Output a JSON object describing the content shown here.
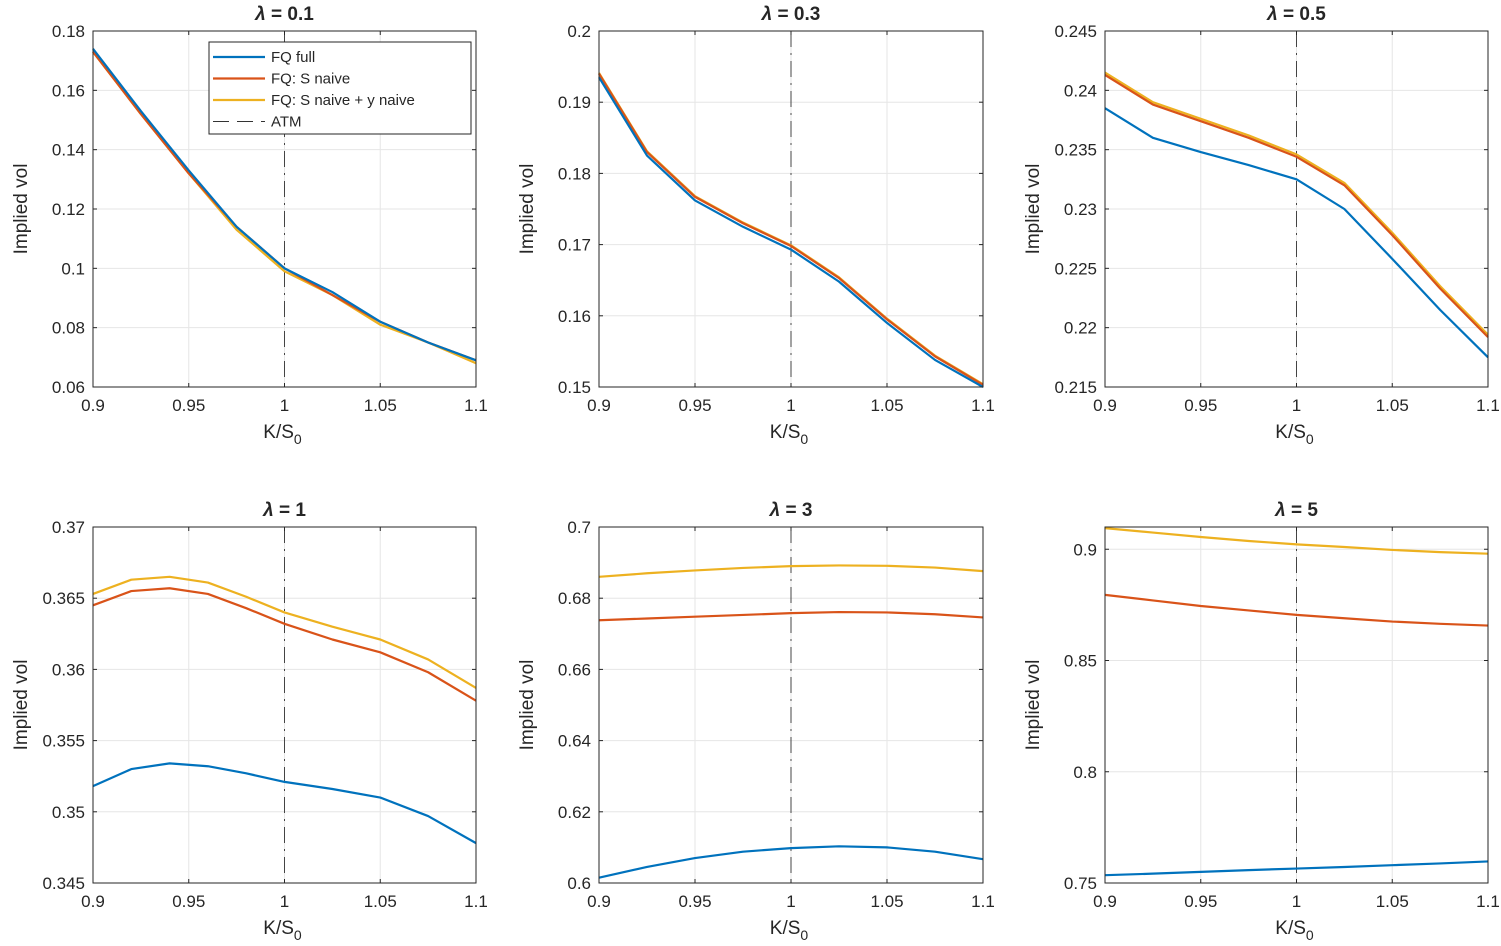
{
  "legend": {
    "entries": [
      {
        "label": "FQ full",
        "color": "#0072BD",
        "dash": "solid"
      },
      {
        "label": "FQ: S naive",
        "color": "#D95319",
        "dash": "solid"
      },
      {
        "label": "FQ: S naive + y naive",
        "color": "#EDB120",
        "dash": "solid"
      },
      {
        "label": "ATM",
        "color": "#333333",
        "dash": "dashed"
      }
    ]
  },
  "chart_data": [
    {
      "type": "line",
      "title_symbol": "λ",
      "title_rest": " = 0.1",
      "xlabel": "K/S",
      "xlabel_sub": "0",
      "ylabel": "Implied vol",
      "xlim": [
        0.9,
        1.1
      ],
      "ylim": [
        0.06,
        0.18
      ],
      "xticks": [
        "0.9",
        "0.95",
        "1",
        "1.05",
        "1.1"
      ],
      "yticks": [
        "0.06",
        "0.08",
        "0.1",
        "0.12",
        "0.14",
        "0.16",
        "0.18"
      ],
      "grid": true,
      "legend_position": "top-right",
      "atm_x": 1.0,
      "x": [
        0.9,
        0.925,
        0.95,
        0.975,
        1.0,
        1.025,
        1.05,
        1.075,
        1.1
      ],
      "series": [
        {
          "name": "FQ full",
          "values": [
            0.174,
            0.153,
            0.133,
            0.114,
            0.1,
            0.092,
            0.082,
            0.075,
            0.069
          ]
        },
        {
          "name": "FQ: S naive",
          "values": [
            0.173,
            0.152,
            0.132,
            0.114,
            0.1,
            0.091,
            0.082,
            0.075,
            0.069
          ]
        },
        {
          "name": "FQ: S naive + y naive",
          "values": [
            0.173,
            0.152,
            0.132,
            0.113,
            0.099,
            0.091,
            0.081,
            0.075,
            0.068
          ]
        }
      ]
    },
    {
      "type": "line",
      "title_symbol": "λ",
      "title_rest": " = 0.3",
      "xlabel": "K/S",
      "xlabel_sub": "0",
      "ylabel": "Implied vol",
      "xlim": [
        0.9,
        1.1
      ],
      "ylim": [
        0.15,
        0.2
      ],
      "xticks": [
        "0.9",
        "0.95",
        "1",
        "1.05",
        "1.1"
      ],
      "yticks": [
        "0.15",
        "0.16",
        "0.17",
        "0.18",
        "0.19",
        "0.2"
      ],
      "grid": true,
      "atm_x": 1.0,
      "x": [
        0.9,
        0.925,
        0.95,
        0.975,
        1.0,
        1.025,
        1.05,
        1.075,
        1.1
      ],
      "series": [
        {
          "name": "FQ full",
          "values": [
            0.1935,
            0.1825,
            0.1762,
            0.1725,
            0.1693,
            0.1648,
            0.159,
            0.1538,
            0.15
          ]
        },
        {
          "name": "FQ: S naive",
          "values": [
            0.194,
            0.183,
            0.1767,
            0.173,
            0.1698,
            0.1653,
            0.1595,
            0.1543,
            0.1503
          ]
        },
        {
          "name": "FQ: S naive + y naive",
          "values": [
            0.1941,
            0.1831,
            0.1768,
            0.1731,
            0.1699,
            0.1654,
            0.1596,
            0.1544,
            0.1504
          ]
        }
      ]
    },
    {
      "type": "line",
      "title_symbol": "λ",
      "title_rest": " = 0.5",
      "xlabel": "K/S",
      "xlabel_sub": "0",
      "ylabel": "Implied vol",
      "xlim": [
        0.9,
        1.1
      ],
      "ylim": [
        0.215,
        0.245
      ],
      "xticks": [
        "0.9",
        "0.95",
        "1",
        "1.05",
        "1.1"
      ],
      "yticks": [
        "0.215",
        "0.22",
        "0.225",
        "0.23",
        "0.235",
        "0.24",
        "0.245"
      ],
      "grid": true,
      "atm_x": 1.0,
      "x": [
        0.9,
        0.925,
        0.95,
        0.975,
        1.0,
        1.025,
        1.05,
        1.075,
        1.1
      ],
      "series": [
        {
          "name": "FQ full",
          "values": [
            0.2385,
            0.236,
            0.2348,
            0.2337,
            0.2325,
            0.23,
            0.2258,
            0.2215,
            0.2175
          ]
        },
        {
          "name": "FQ: S naive",
          "values": [
            0.2413,
            0.2388,
            0.2374,
            0.236,
            0.2344,
            0.232,
            0.2278,
            0.2233,
            0.2192
          ]
        },
        {
          "name": "FQ: S naive + y naive",
          "values": [
            0.2415,
            0.239,
            0.2376,
            0.2362,
            0.2346,
            0.2322,
            0.228,
            0.2235,
            0.2194
          ]
        }
      ]
    },
    {
      "type": "line",
      "title_symbol": "λ",
      "title_rest": " = 1",
      "xlabel": "K/S",
      "xlabel_sub": "0",
      "ylabel": "Implied vol",
      "xlim": [
        0.9,
        1.1
      ],
      "ylim": [
        0.345,
        0.37
      ],
      "xticks": [
        "0.9",
        "0.95",
        "1",
        "1.05",
        "1.1"
      ],
      "yticks": [
        "0.345",
        "0.35",
        "0.355",
        "0.36",
        "0.365",
        "0.37"
      ],
      "grid": true,
      "atm_x": 1.0,
      "x": [
        0.9,
        0.92,
        0.94,
        0.96,
        0.98,
        1.0,
        1.025,
        1.05,
        1.075,
        1.1
      ],
      "series": [
        {
          "name": "FQ full",
          "values": [
            0.3518,
            0.353,
            0.3534,
            0.3532,
            0.3527,
            0.3521,
            0.3516,
            0.351,
            0.3497,
            0.3478
          ]
        },
        {
          "name": "FQ: S naive",
          "values": [
            0.3645,
            0.3655,
            0.3657,
            0.3653,
            0.3643,
            0.3632,
            0.3621,
            0.3612,
            0.3598,
            0.3578
          ]
        },
        {
          "name": "FQ: S naive + y naive",
          "values": [
            0.3653,
            0.3663,
            0.3665,
            0.3661,
            0.3651,
            0.364,
            0.363,
            0.3621,
            0.3607,
            0.3587
          ]
        }
      ]
    },
    {
      "type": "line",
      "title_symbol": "λ",
      "title_rest": " = 3",
      "xlabel": "K/S",
      "xlabel_sub": "0",
      "ylabel": "Implied vol",
      "xlim": [
        0.9,
        1.1
      ],
      "ylim": [
        0.6,
        0.7
      ],
      "xticks": [
        "0.9",
        "0.95",
        "1",
        "1.05",
        "1.1"
      ],
      "yticks": [
        "0.6",
        "0.62",
        "0.64",
        "0.66",
        "0.68",
        "0.7"
      ],
      "grid": true,
      "atm_x": 1.0,
      "x": [
        0.9,
        0.925,
        0.95,
        0.975,
        1.0,
        1.025,
        1.05,
        1.075,
        1.1
      ],
      "series": [
        {
          "name": "FQ full",
          "values": [
            0.6015,
            0.6045,
            0.607,
            0.6088,
            0.6098,
            0.6103,
            0.61,
            0.6088,
            0.6067
          ]
        },
        {
          "name": "FQ: S naive",
          "values": [
            0.6738,
            0.6743,
            0.6748,
            0.6753,
            0.6758,
            0.6761,
            0.676,
            0.6755,
            0.6746
          ]
        },
        {
          "name": "FQ: S naive + y naive",
          "values": [
            0.686,
            0.687,
            0.6878,
            0.6885,
            0.689,
            0.6892,
            0.6891,
            0.6886,
            0.6876
          ]
        }
      ]
    },
    {
      "type": "line",
      "title_symbol": "λ",
      "title_rest": " = 5",
      "xlabel": "K/S",
      "xlabel_sub": "0",
      "ylabel": "Implied vol",
      "xlim": [
        0.9,
        1.1
      ],
      "ylim": [
        0.75,
        0.91
      ],
      "xticks": [
        "0.9",
        "0.95",
        "1",
        "1.05",
        "1.1"
      ],
      "yticks": [
        "0.75",
        "0.8",
        "0.85",
        "0.9"
      ],
      "grid": true,
      "atm_x": 1.0,
      "x": [
        0.9,
        0.925,
        0.95,
        0.975,
        1.0,
        1.025,
        1.05,
        1.075,
        1.1
      ],
      "series": [
        {
          "name": "FQ full",
          "values": [
            0.7535,
            0.7542,
            0.755,
            0.7558,
            0.7565,
            0.7572,
            0.758,
            0.7588,
            0.7597
          ]
        },
        {
          "name": "FQ: S naive",
          "values": [
            0.8795,
            0.877,
            0.8745,
            0.8725,
            0.8705,
            0.869,
            0.8675,
            0.8665,
            0.8657
          ]
        },
        {
          "name": "FQ: S naive + y naive",
          "values": [
            0.9095,
            0.9075,
            0.9055,
            0.9037,
            0.9022,
            0.901,
            0.8997,
            0.8987,
            0.898
          ]
        }
      ]
    }
  ]
}
